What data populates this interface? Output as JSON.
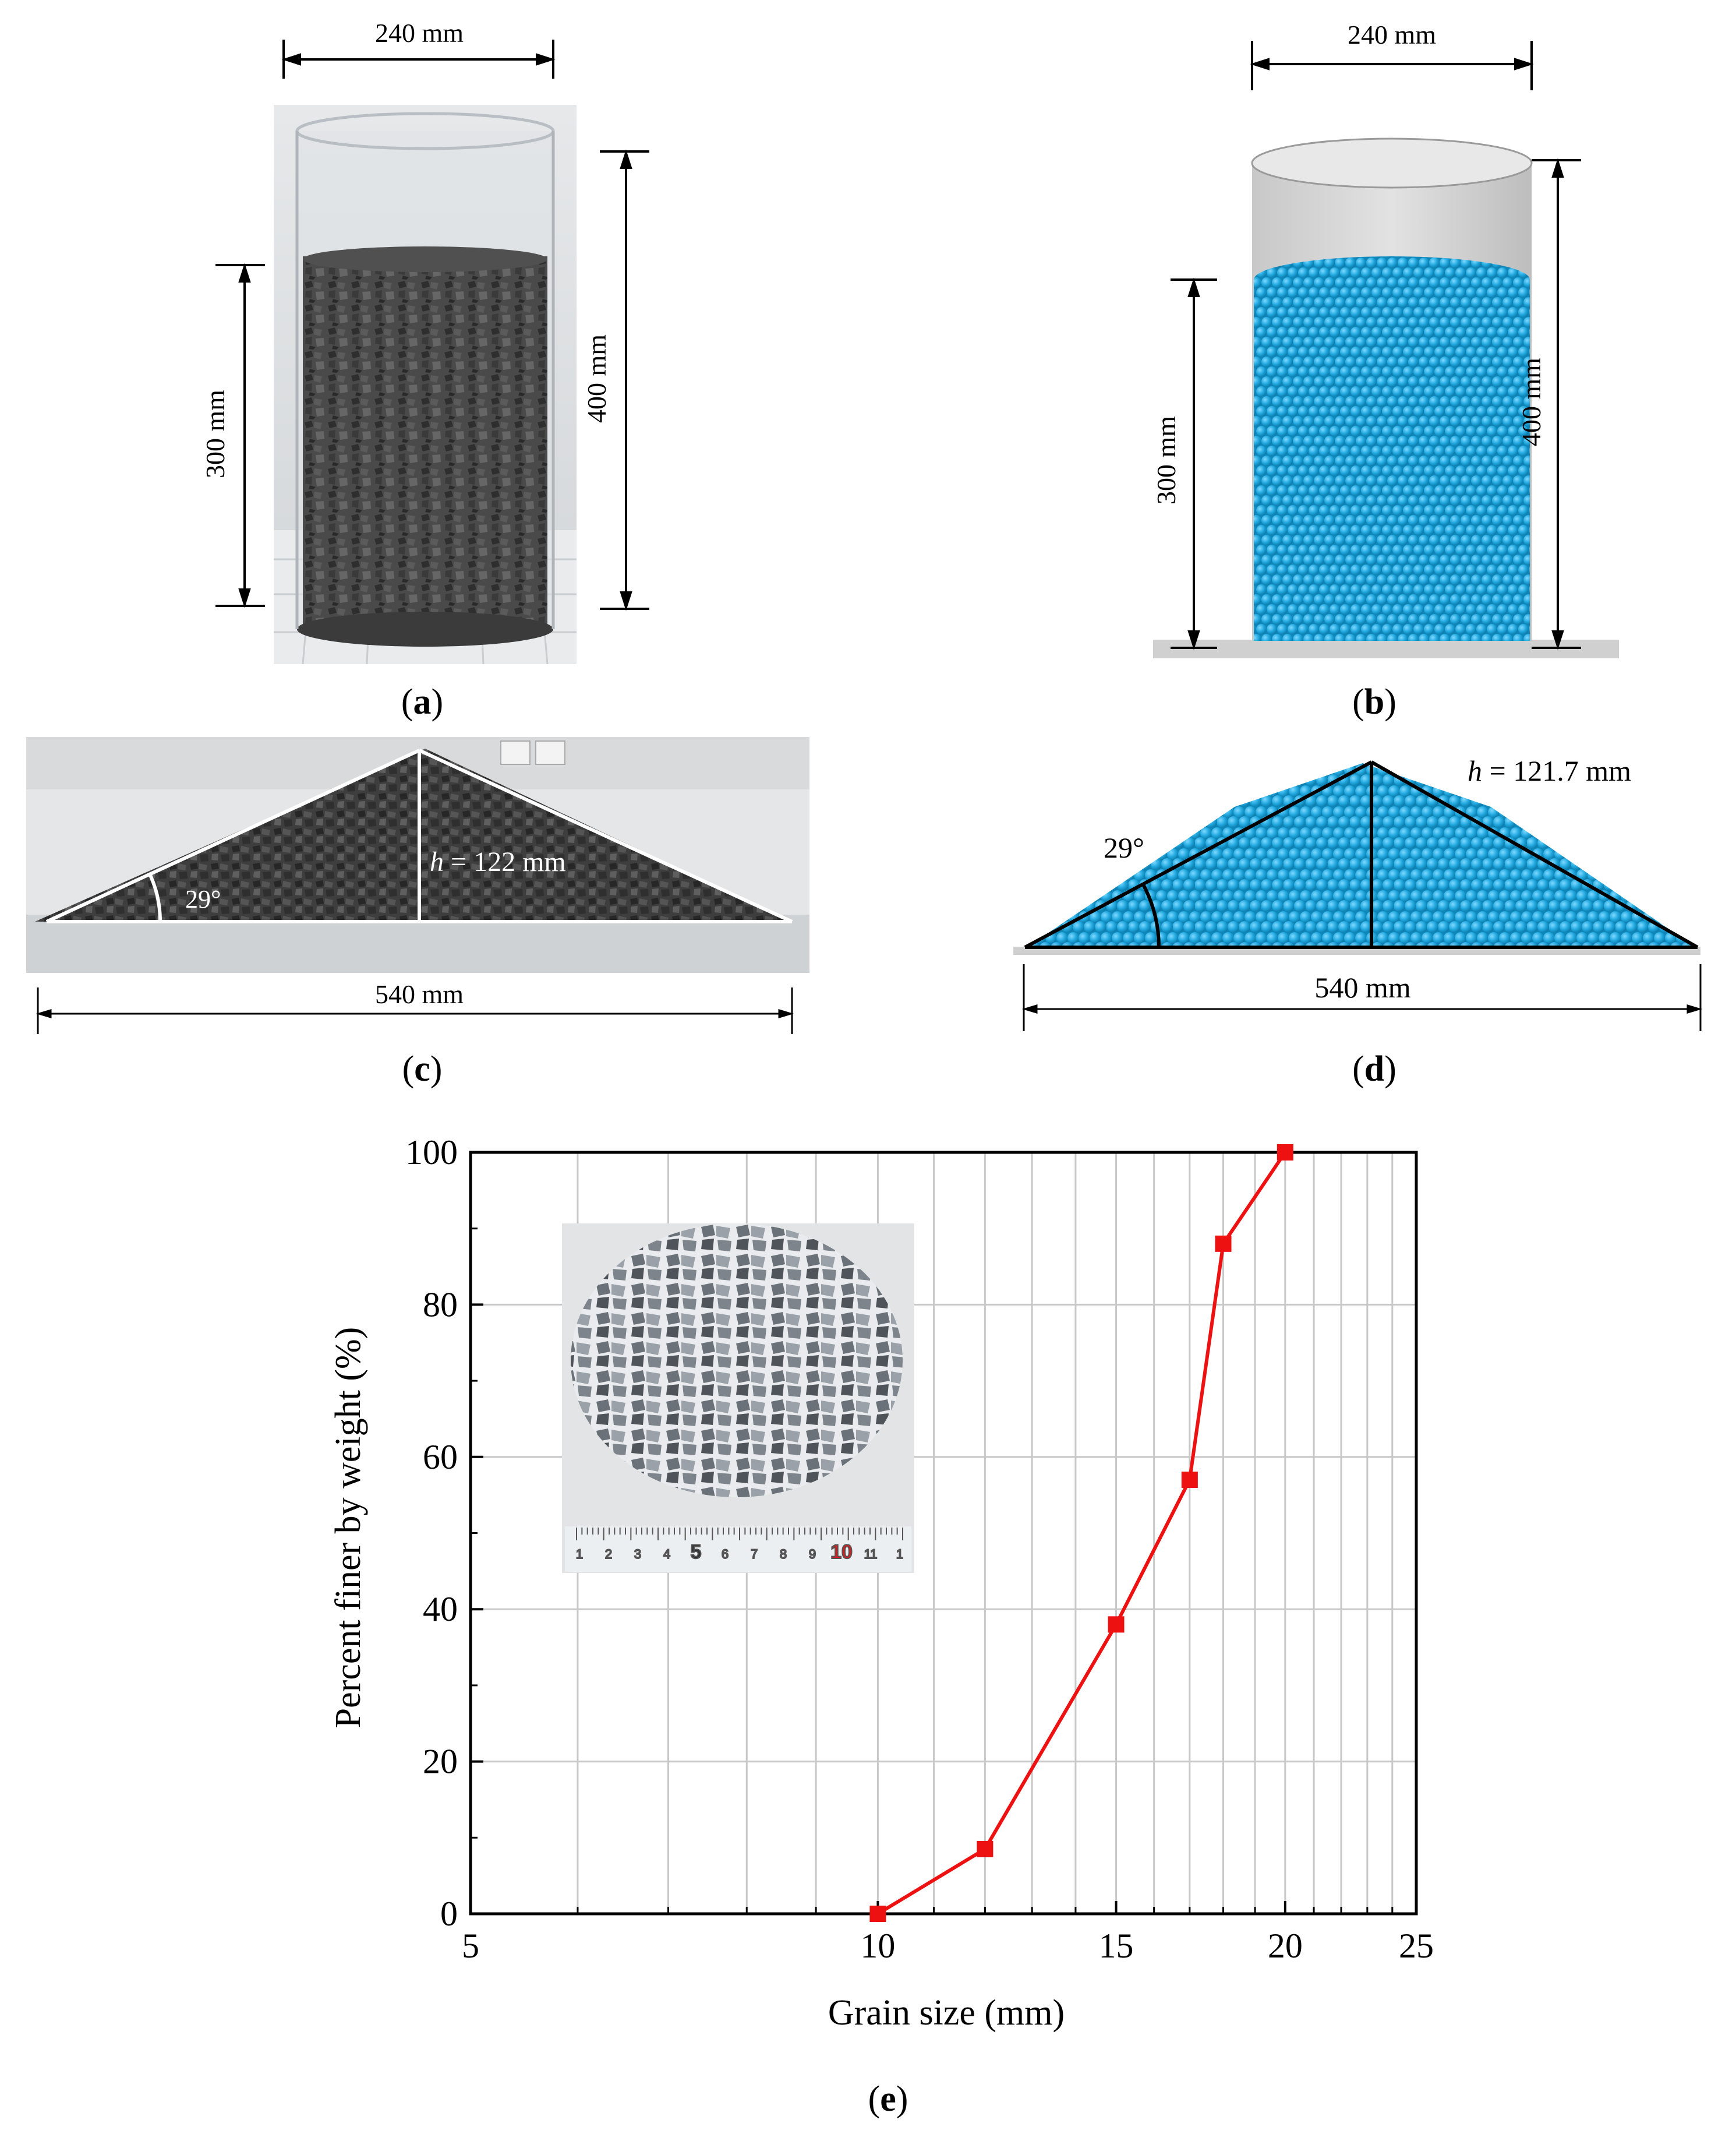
{
  "panel_a": {
    "caption_open": "(",
    "caption_letter": "a",
    "caption_close": ")",
    "width_label": "240 mm",
    "fill_height_label": "300 mm",
    "cylinder_height_label": "400 mm"
  },
  "panel_b": {
    "caption_open": "(",
    "caption_letter": "b",
    "caption_close": ")",
    "width_label": "240 mm",
    "fill_height_label": "300 mm",
    "cylinder_height_label": "400 mm"
  },
  "panel_c": {
    "caption_open": "(",
    "caption_letter": "c",
    "caption_close": ")",
    "angle_label": "29°",
    "height_var": "h",
    "height_value": " = 122 mm",
    "base_label": "540 mm"
  },
  "panel_d": {
    "caption_open": "(",
    "caption_letter": "d",
    "caption_close": ")",
    "angle_label": "29°",
    "height_var": "h",
    "height_value": " = 121.7 mm",
    "base_label": "540 mm"
  },
  "panel_e": {
    "caption_open": "(",
    "caption_letter": "e",
    "caption_close": ")"
  },
  "chart_data": {
    "type": "line",
    "title": "",
    "xlabel": "Grain size (mm)",
    "ylabel": "Percent finer by weight (%)",
    "x_scale": "log",
    "xlim": [
      5,
      25
    ],
    "ylim": [
      0,
      100
    ],
    "x_ticks": [
      5,
      10,
      15,
      20,
      25
    ],
    "y_ticks": [
      0,
      20,
      40,
      60,
      80,
      100
    ],
    "grid": true,
    "series": [
      {
        "x": [
          10,
          12,
          15,
          17,
          18,
          20
        ],
        "y": [
          0,
          8.5,
          38,
          57,
          88,
          100
        ],
        "color": "#ee1111",
        "marker": "square"
      }
    ],
    "inset": "photo of crushed stone particles on a ruler",
    "ruler_marks": [
      "1",
      "2",
      "3",
      "4",
      "5",
      "6",
      "7",
      "8",
      "9",
      "10",
      "11",
      "1"
    ]
  }
}
